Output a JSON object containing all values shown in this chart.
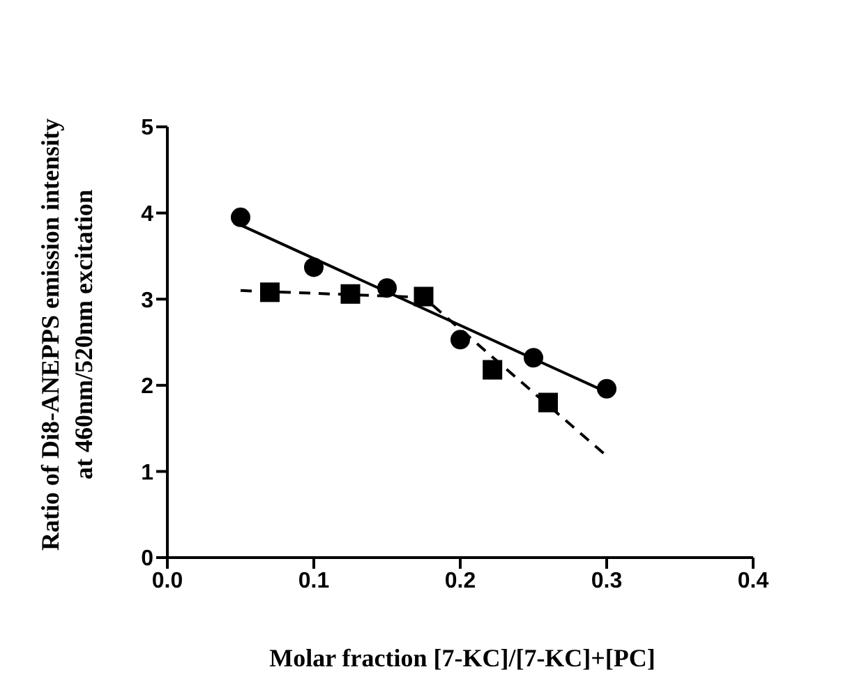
{
  "chart_data": {
    "type": "scatter",
    "xlabel": "Molar fraction [7-KC]/[7-KC]+[PC]",
    "ylabel": "Ratio of Di8-ANEPPS emission intensity\nat 460nm/520nm excitation",
    "xlim": [
      0,
      0.4
    ],
    "xticks": [
      {
        "value": 0,
        "label": "0.0"
      },
      0.1,
      0.2,
      0.3,
      0.4
    ],
    "ylim": [
      0,
      5
    ],
    "yticks": [
      0,
      1,
      2,
      3,
      4,
      5
    ],
    "grid": false,
    "legend": false,
    "series": [
      {
        "marker": "circle",
        "color": "#000000",
        "x": [
          0.05,
          0.1,
          0.15,
          0.2,
          0.25,
          0.3
        ],
        "values": [
          3.95,
          3.37,
          3.13,
          2.53,
          2.32,
          1.96
        ]
      },
      {
        "marker": "square",
        "color": "#000000",
        "x": [
          0.07,
          0.125,
          0.175,
          0.222,
          0.26
        ],
        "values": [
          3.08,
          3.06,
          3.03,
          2.18,
          1.8
        ]
      },
      {
        "type": "line",
        "line_style": "solid",
        "color": "#000000",
        "x": [
          0.05,
          0.3
        ],
        "values": [
          3.86,
          1.92
        ]
      },
      {
        "type": "line",
        "line_style": "dashed",
        "color": "#000000",
        "x": [
          0.05,
          0.175,
          0.3
        ],
        "values": [
          3.1,
          3.02,
          1.18
        ]
      }
    ]
  }
}
